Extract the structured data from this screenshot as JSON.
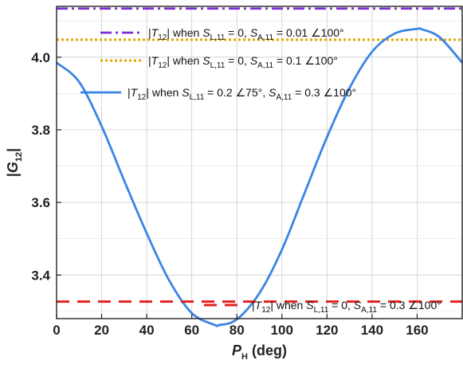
{
  "chart_data": {
    "type": "line",
    "xlabel": {
      "main": "P",
      "sub": "H",
      "rest": " (deg)"
    },
    "ylabel": {
      "main": "G",
      "sub": "12"
    },
    "xlim": [
      0,
      180
    ],
    "ylim": [
      3.28,
      4.14
    ],
    "x_ticks": [
      "0",
      "20",
      "40",
      "60",
      "80",
      "100",
      "120",
      "140",
      "160"
    ],
    "x_tick_values": [
      0,
      20,
      40,
      60,
      80,
      100,
      120,
      140,
      160
    ],
    "y_ticks": [
      "3.4",
      "3.6",
      "3.8",
      "4.0"
    ],
    "y_tick_values": [
      3.4,
      3.6,
      3.8,
      4.0
    ],
    "grid": true,
    "series": [
      {
        "legend_parts": [
          "|T",
          "12",
          "| when S",
          "L,11",
          " = 0, S",
          "A,11",
          " = 0.01 ∠100°"
        ],
        "style": "dashdot",
        "color": "#7b2fd0",
        "x": [
          0,
          180
        ],
        "y": [
          4.134,
          4.134
        ]
      },
      {
        "legend_parts": [
          "|T",
          "12",
          "| when S",
          "L,11",
          " = 0, S",
          "A,11",
          " = 0.1 ∠100°"
        ],
        "style": "dotted",
        "color": "#e0a800",
        "x": [
          0,
          180
        ],
        "y": [
          4.048,
          4.048
        ]
      },
      {
        "legend_parts": [
          "|T",
          "12",
          "| when S",
          "L,11",
          " = 0.2 ∠75°, S",
          "A,11",
          " = 0.3 ∠100°"
        ],
        "style": "solid",
        "color": "#3a84e6",
        "x": [
          0,
          10,
          20,
          30,
          40,
          50,
          60,
          70,
          72,
          80,
          90,
          100,
          110,
          120,
          130,
          140,
          150,
          160,
          162,
          170,
          180
        ],
        "y": [
          3.985,
          3.932,
          3.81,
          3.66,
          3.515,
          3.385,
          3.295,
          3.263,
          3.262,
          3.278,
          3.35,
          3.47,
          3.625,
          3.78,
          3.915,
          4.015,
          4.065,
          4.078,
          4.077,
          4.055,
          3.985
        ]
      },
      {
        "legend_parts": [
          "|T",
          "12",
          "| when S",
          "L,11",
          " = 0, S",
          "A,11",
          " = 0.3 ∠100°"
        ],
        "style": "dashed",
        "color": "#e02020",
        "x": [
          0,
          180
        ],
        "y": [
          3.327,
          3.327
        ]
      }
    ]
  }
}
